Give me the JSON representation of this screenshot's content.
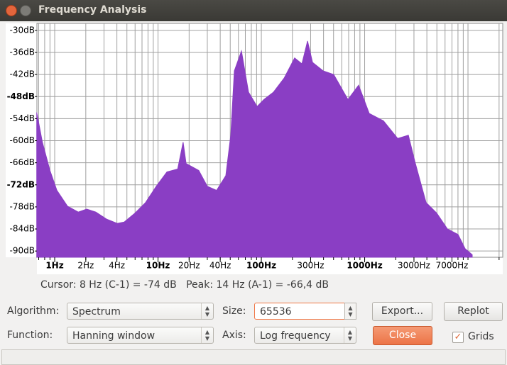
{
  "window": {
    "title": "Frequency Analysis"
  },
  "chart_data": {
    "type": "area",
    "xscale": "log",
    "color": "#8a3ec4",
    "grid": true,
    "xlim": [
      0.673,
      21700
    ],
    "ylim": [
      -91.7,
      -28.1
    ],
    "yticks": [
      {
        "value": -30,
        "label": "-30dB"
      },
      {
        "value": -36,
        "label": "-36dB"
      },
      {
        "value": -42,
        "label": "-42dB"
      },
      {
        "value": -48,
        "label": "-48dB",
        "bold": true
      },
      {
        "value": -54,
        "label": "-54dB"
      },
      {
        "value": -60,
        "label": "-60dB"
      },
      {
        "value": -66,
        "label": "-66dB"
      },
      {
        "value": -72,
        "label": "-72dB",
        "bold": true
      },
      {
        "value": -78,
        "label": "-78dB"
      },
      {
        "value": -84,
        "label": "-84dB"
      },
      {
        "value": -90,
        "label": "-90dB"
      }
    ],
    "xticks": [
      {
        "value": 1,
        "label": "1Hz",
        "bold": true
      },
      {
        "value": 2,
        "label": "2Hz"
      },
      {
        "value": 4,
        "label": "4Hz"
      },
      {
        "value": 10,
        "label": "10Hz",
        "bold": true
      },
      {
        "value": 20,
        "label": "20Hz"
      },
      {
        "value": 40,
        "label": "40Hz"
      },
      {
        "value": 100,
        "label": "100Hz",
        "bold": true
      },
      {
        "value": 300,
        "label": "300Hz"
      },
      {
        "value": 1000,
        "label": "1000Hz",
        "bold": true
      },
      {
        "value": 3000,
        "label": "3000Hz"
      },
      {
        "value": 7000,
        "label": "7000Hz"
      }
    ],
    "xgrid": [
      0.7,
      0.8,
      0.9,
      1,
      2,
      3,
      4,
      5,
      6,
      7,
      8,
      9,
      10,
      20,
      30,
      40,
      50,
      60,
      70,
      80,
      90,
      100,
      200,
      300,
      400,
      500,
      600,
      700,
      800,
      900,
      1000,
      2000,
      3000,
      4000,
      5000,
      6000,
      7000,
      8000,
      9000,
      10000,
      20000
    ],
    "x": [
      0.67,
      0.76,
      0.9,
      1.05,
      1.33,
      1.69,
      2.04,
      2.5,
      3.17,
      4.03,
      4.72,
      5.98,
      7.58,
      9.61,
      12.2,
      15.5,
      17.5,
      18.7,
      24.8,
      30,
      36.9,
      45.3,
      50.6,
      54.8,
      64.2,
      75.2,
      91,
      106,
      131,
      166,
      210,
      247,
      280,
      313,
      396,
      502,
      689,
      874,
      1108,
      1521,
      2089,
      2649,
      3098,
      3929,
      4984,
      6324,
      8017,
      9398,
      10990
    ],
    "values": [
      -52.3,
      -60.4,
      -68.1,
      -73.5,
      -77.8,
      -79.4,
      -78.6,
      -79.4,
      -81.3,
      -82.5,
      -82.1,
      -79.7,
      -76.8,
      -72.4,
      -68.5,
      -67.7,
      -60.4,
      -66.2,
      -68.1,
      -72.4,
      -73.5,
      -69.5,
      -58.5,
      -41.0,
      -35.6,
      -46.8,
      -50.7,
      -48.8,
      -46.8,
      -43.0,
      -37.5,
      -39.1,
      -32.9,
      -38.7,
      -41.0,
      -42.0,
      -48.8,
      -44.9,
      -52.6,
      -54.6,
      -59.4,
      -58.5,
      -66.2,
      -76.8,
      -79.7,
      -84.0,
      -85.5,
      -89.4,
      -91.0
    ]
  },
  "status": "Cursor: 8 Hz (C-1) = -74 dB   Peak: 14 Hz (A-1) = -66,4 dB",
  "controls": {
    "algorithm_label": "Algorithm:",
    "algorithm": "Spectrum",
    "size_label": "Size:",
    "size": 65536,
    "export": "Export...",
    "replot": "Replot",
    "function_label": "Function:",
    "function": "Hanning window",
    "axis_label": "Axis:",
    "axis": "Log frequency",
    "close": "Close",
    "grids": "Grids",
    "grids_checked": true
  }
}
